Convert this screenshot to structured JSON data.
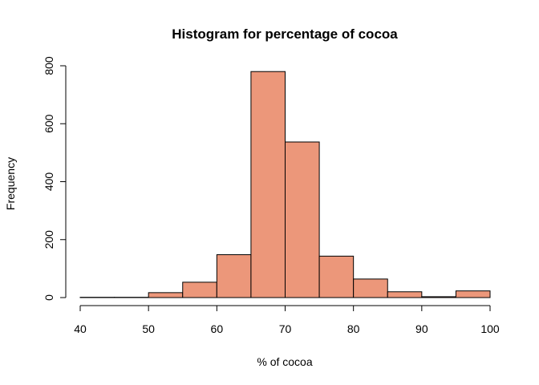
{
  "chart_data": {
    "type": "bar",
    "title": "Histogram for percentage of cocoa",
    "xlabel": "% of cocoa",
    "ylabel": "Frequency",
    "xlim": [
      40,
      100
    ],
    "ylim": [
      0,
      800
    ],
    "bin_edges": [
      40,
      45,
      50,
      55,
      60,
      65,
      70,
      75,
      80,
      85,
      90,
      95,
      100
    ],
    "values": [
      1,
      1,
      17,
      53,
      148,
      780,
      537,
      143,
      64,
      20,
      3,
      23
    ],
    "xticks": [
      "40",
      "50",
      "60",
      "70",
      "80",
      "90",
      "100"
    ],
    "yticks": [
      "0",
      "200",
      "400",
      "600",
      "800"
    ],
    "bar_color": "#EC977A",
    "grid": false,
    "legend": "none"
  }
}
